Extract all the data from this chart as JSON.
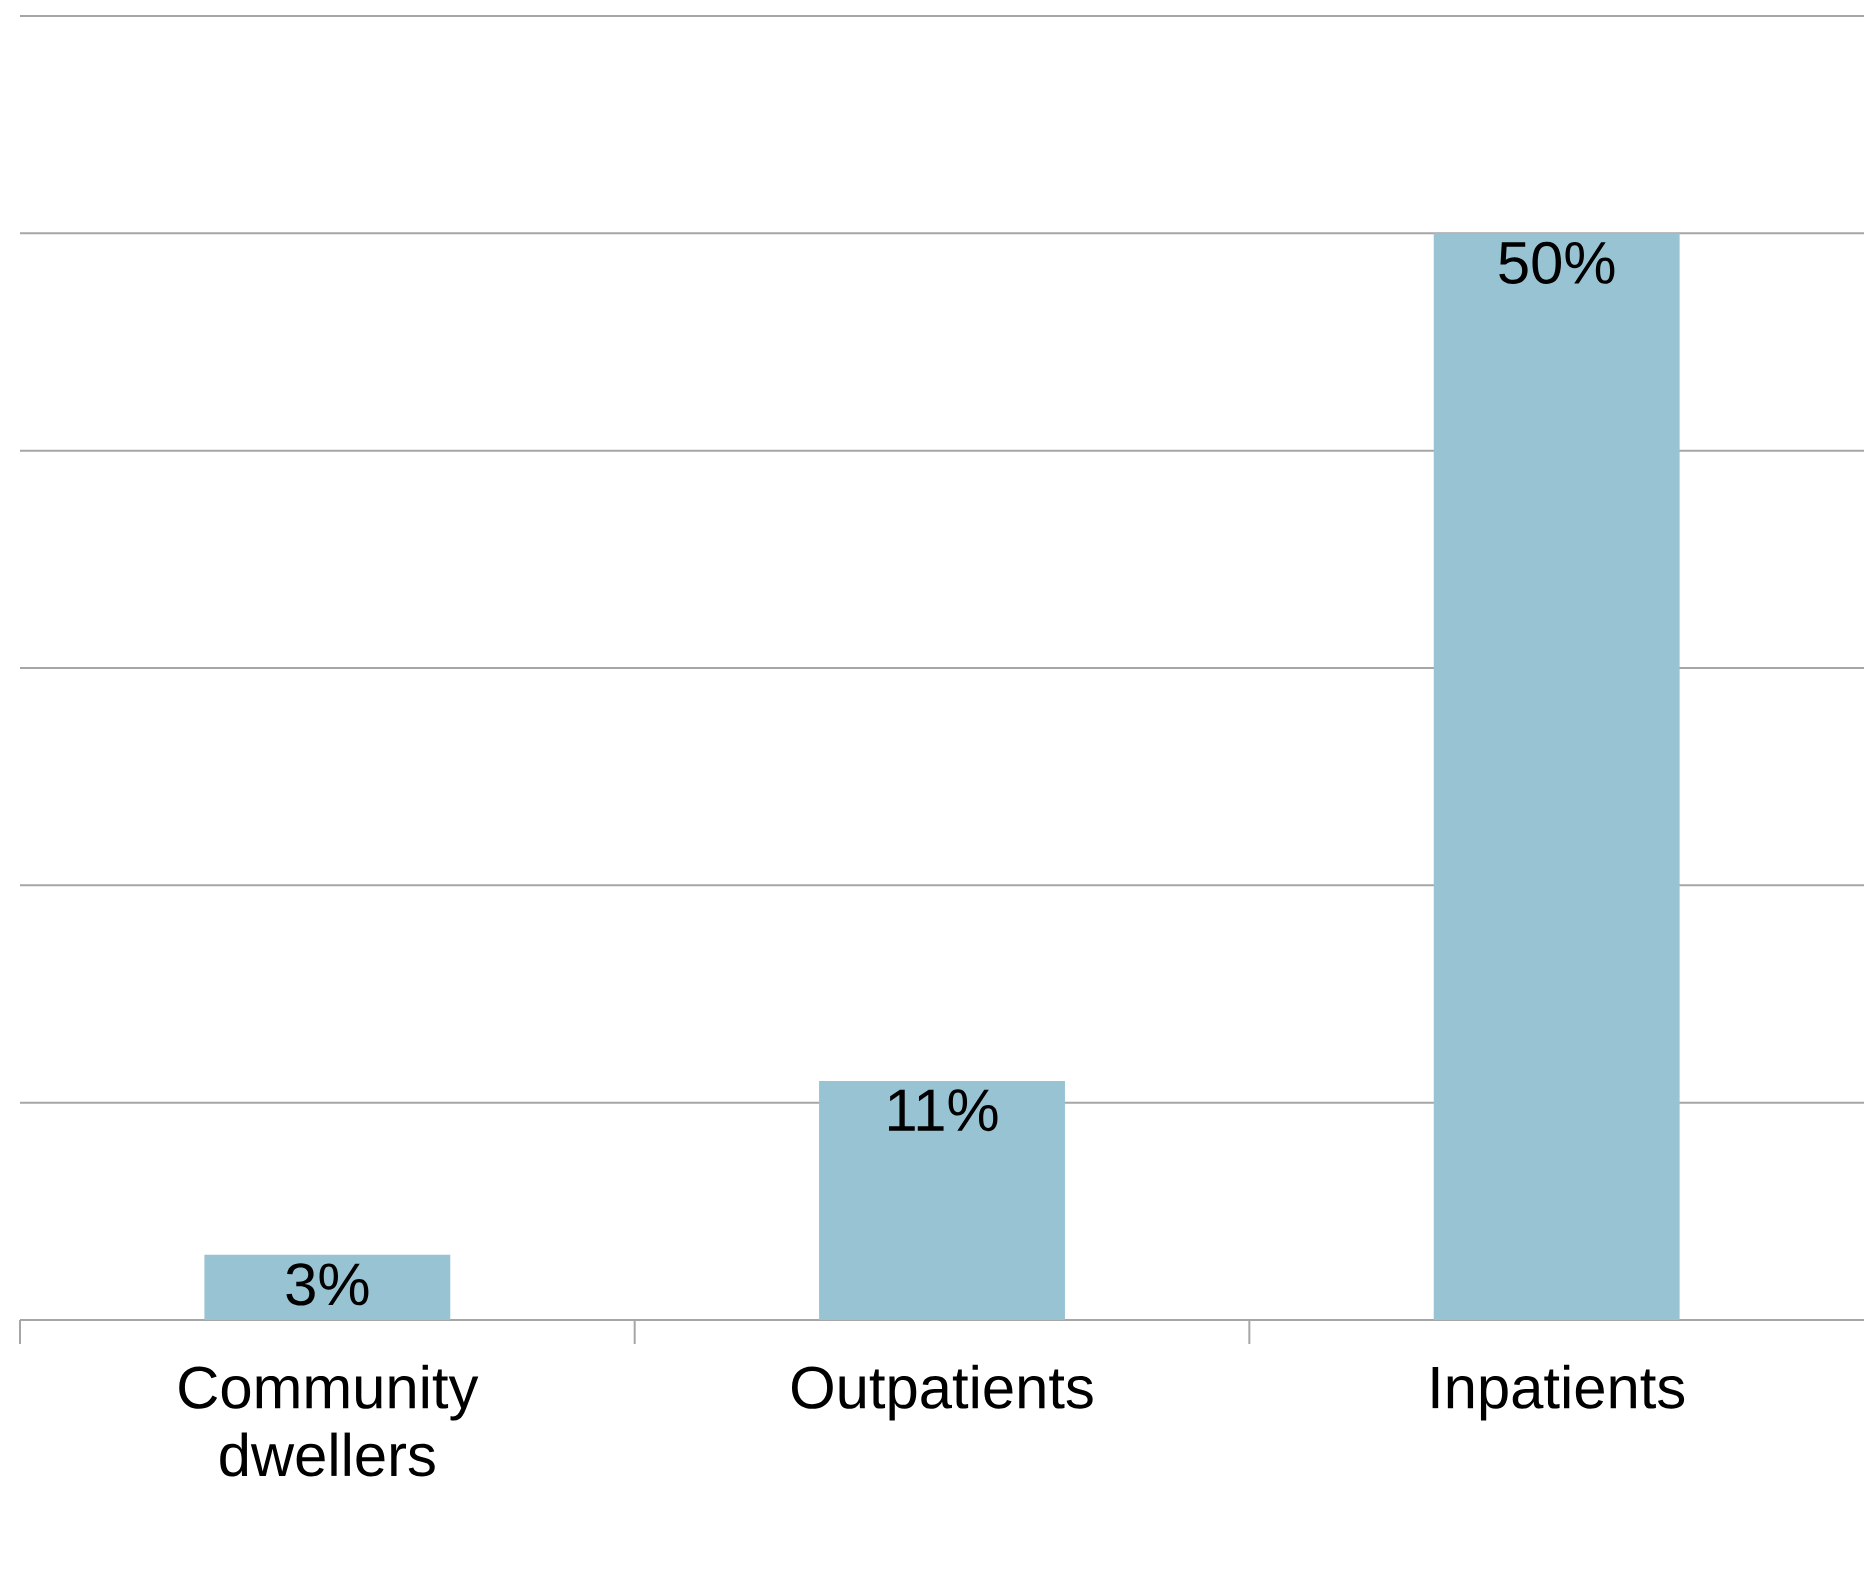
{
  "chart_data": {
    "type": "bar",
    "categories": [
      "Community dwellers",
      "Outpatients",
      "Inpatients"
    ],
    "values": [
      3,
      11,
      50
    ],
    "value_labels": [
      "3%",
      "11%",
      "50%"
    ],
    "color": "#98c3d3",
    "ylim": [
      0,
      60
    ],
    "yticks": [
      {
        "value": 0,
        "label": null
      },
      {
        "value": 10,
        "label": null
      },
      {
        "value": 20,
        "label": null
      },
      {
        "value": 30,
        "label": null
      },
      {
        "value": 40,
        "label": null
      },
      {
        "value": 50,
        "label": null
      },
      {
        "value": 60,
        "label": null
      }
    ],
    "grid": "y",
    "tick_labels": "x"
  }
}
